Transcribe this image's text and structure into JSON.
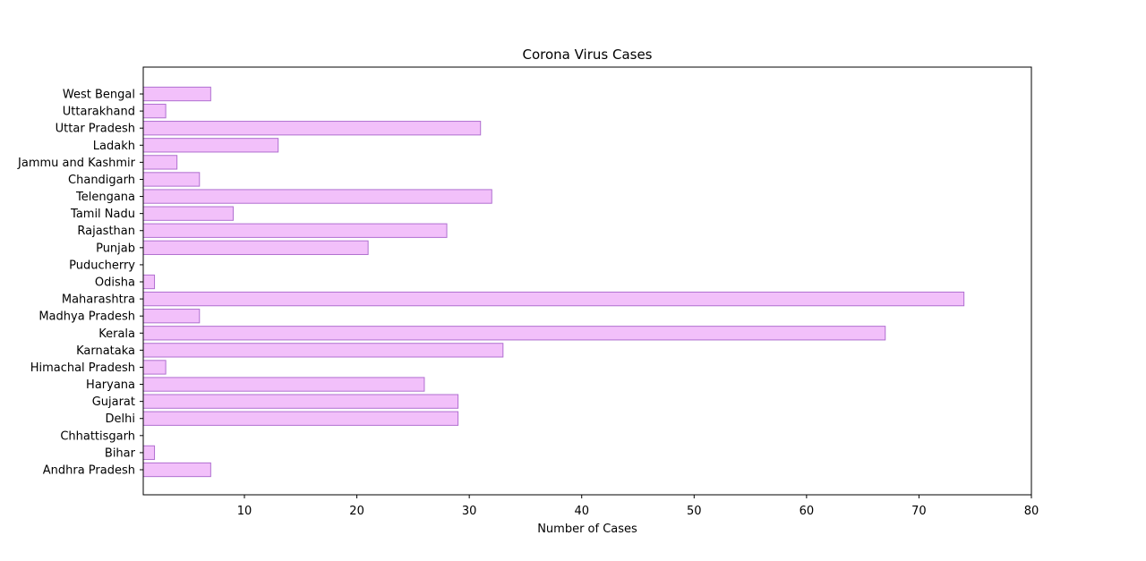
{
  "chart_data": {
    "type": "bar",
    "orientation": "horizontal",
    "title": "Corona Virus Cases",
    "xlabel": "Number of Cases",
    "ylabel": "",
    "xlim": [
      1,
      80
    ],
    "xticks": [
      10,
      20,
      30,
      40,
      50,
      60,
      70,
      80
    ],
    "grid": false,
    "colors": {
      "fill": "#f2c0fa",
      "edge": "#b06fd0"
    },
    "categories": [
      "Andhra Pradesh",
      "Bihar",
      "Chhattisgarh",
      "Delhi",
      "Gujarat",
      "Haryana",
      "Himachal Pradesh",
      "Karnataka",
      "Kerala",
      "Madhya Pradesh",
      "Maharashtra",
      "Odisha",
      "Puducherry",
      "Punjab",
      "Rajasthan",
      "Tamil Nadu",
      "Telengana",
      "Chandigarh",
      "Jammu and Kashmir",
      "Ladakh",
      "Uttar Pradesh",
      "Uttarakhand",
      "West Bengal"
    ],
    "values": [
      7,
      2,
      1,
      29,
      29,
      26,
      3,
      33,
      67,
      6,
      74,
      2,
      1,
      21,
      28,
      9,
      32,
      6,
      4,
      13,
      31,
      3,
      7
    ]
  }
}
